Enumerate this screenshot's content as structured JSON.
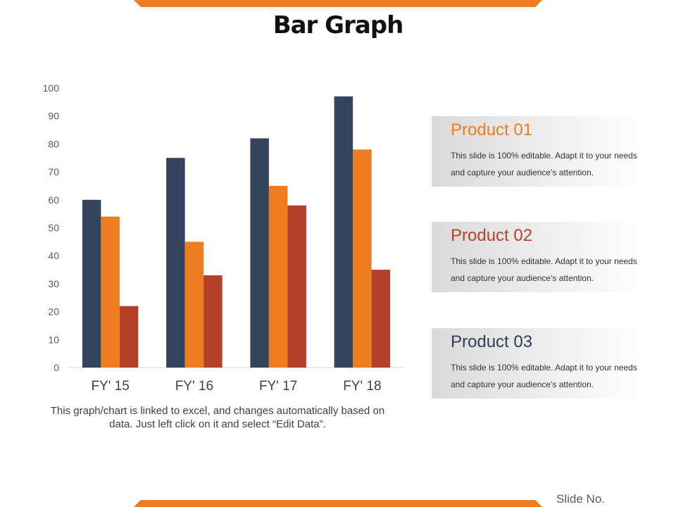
{
  "slide": {
    "title": "Bar Graph",
    "note": "This graph/chart is linked to excel, and changes automatically based on data. Just left click on it and select “Edit Data”.",
    "slide_no": "Slide No.",
    "accent_color": "#ee7d22"
  },
  "cards": [
    {
      "title": "Product 01",
      "text": "This slide is 100% editable. Adapt it to your needs and capture your audience's attention.",
      "color": "#ee7d22"
    },
    {
      "title": "Product 02",
      "text": "This slide is 100% editable. Adapt it to your needs and capture your audience's attention.",
      "color": "#b5412a"
    },
    {
      "title": "Product 03",
      "text": "This slide is 100% editable. Adapt it to your needs and capture your audience's attention.",
      "color": "#2f3f55"
    }
  ],
  "chart_data": {
    "type": "bar",
    "categories": [
      "FY' 15",
      "FY' 16",
      "FY' 17",
      "FY' 18"
    ],
    "series": [
      {
        "values": [
          60,
          75,
          82,
          97
        ],
        "color": "#33445c"
      },
      {
        "values": [
          54,
          45,
          65,
          78
        ],
        "color": "#ee7d22"
      },
      {
        "values": [
          22,
          33,
          58,
          35
        ],
        "color": "#b3412a"
      }
    ],
    "ylim": [
      0,
      100
    ],
    "yticks": [
      0,
      10,
      20,
      30,
      40,
      50,
      60,
      70,
      80,
      90,
      100
    ],
    "grid": false,
    "legend": "none"
  }
}
